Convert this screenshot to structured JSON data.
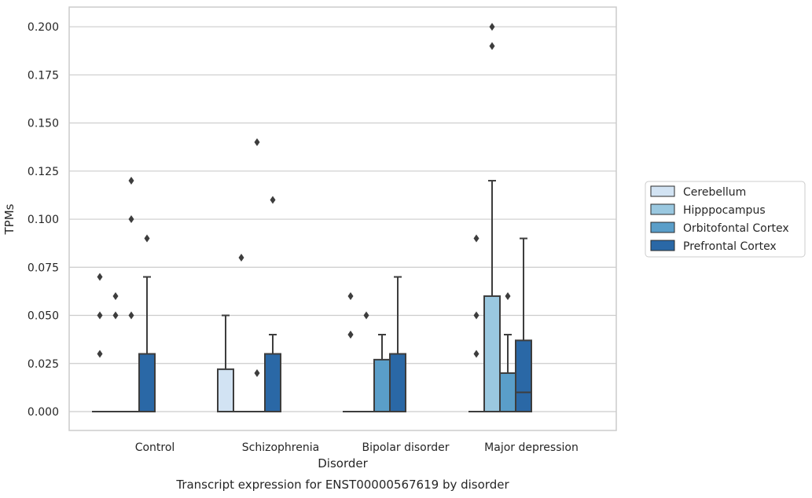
{
  "caption": "Transcript expression for ENST00000567619 by disorder",
  "colors": {
    "line": "#3d3d3d",
    "grid": "#cccccc",
    "spine": "#cccccc"
  },
  "chart_data": {
    "type": "box",
    "xlabel": "Disorder",
    "ylabel": "TPMs",
    "ylim": [
      -0.01,
      0.21
    ],
    "yticks": [
      "0.000",
      "0.025",
      "0.050",
      "0.075",
      "0.100",
      "0.125",
      "0.150",
      "0.175",
      "0.200"
    ],
    "grid": "horizontal",
    "legend_position": "right",
    "categories": [
      "Control",
      "Schizophrenia",
      "Bipolar disorder",
      "Major depression"
    ],
    "series": [
      {
        "name": "Cerebellum",
        "color": "#d2e3f3",
        "boxes": [
          {
            "q1": 0,
            "median": 0,
            "q3": 0,
            "whislo": 0,
            "whishi": 0,
            "fliers": [
              0.03,
              0.05,
              0.07
            ]
          },
          {
            "q1": 0,
            "median": 0,
            "q3": 0.022,
            "whislo": 0,
            "whishi": 0.05,
            "fliers": []
          },
          {
            "q1": 0,
            "median": 0,
            "q3": 0,
            "whislo": 0,
            "whishi": 0,
            "fliers": [
              0.04,
              0.04,
              0.06
            ]
          },
          {
            "q1": 0,
            "median": 0,
            "q3": 0,
            "whislo": 0,
            "whishi": 0,
            "fliers": [
              0.03,
              0.05,
              0.09
            ]
          }
        ]
      },
      {
        "name": "Hipppocampus",
        "color": "#9ac8e0",
        "boxes": [
          {
            "q1": 0,
            "median": 0,
            "q3": 0,
            "whislo": 0,
            "whishi": 0,
            "fliers": [
              0.05,
              0.06
            ]
          },
          {
            "q1": 0,
            "median": 0,
            "q3": 0,
            "whislo": 0,
            "whishi": 0,
            "fliers": [
              0.08
            ]
          },
          {
            "q1": 0,
            "median": 0,
            "q3": 0,
            "whislo": 0,
            "whishi": 0,
            "fliers": [
              0.05
            ]
          },
          {
            "q1": 0,
            "median": 0,
            "q3": 0.06,
            "whislo": 0,
            "whishi": 0.12,
            "fliers": [
              0.19,
              0.2
            ]
          }
        ]
      },
      {
        "name": "Orbitofontal Cortex",
        "color": "#5a9ec9",
        "boxes": [
          {
            "q1": 0,
            "median": 0,
            "q3": 0,
            "whislo": 0,
            "whishi": 0,
            "fliers": [
              0.05,
              0.1,
              0.12
            ]
          },
          {
            "q1": 0,
            "median": 0,
            "q3": 0,
            "whislo": 0,
            "whishi": 0,
            "fliers": [
              0.02,
              0.14
            ]
          },
          {
            "q1": 0,
            "median": 0,
            "q3": 0.027,
            "whislo": 0,
            "whishi": 0.04,
            "fliers": []
          },
          {
            "q1": 0,
            "median": 0,
            "q3": 0.02,
            "whislo": 0,
            "whishi": 0.04,
            "fliers": [
              0.06
            ]
          }
        ]
      },
      {
        "name": "Prefrontal Cortex",
        "color": "#2a68a6",
        "boxes": [
          {
            "q1": 0,
            "median": 0,
            "q3": 0.03,
            "whislo": 0,
            "whishi": 0.07,
            "fliers": [
              0.09
            ]
          },
          {
            "q1": 0,
            "median": 0,
            "q3": 0.03,
            "whislo": 0,
            "whishi": 0.04,
            "fliers": [
              0.11
            ]
          },
          {
            "q1": 0,
            "median": 0,
            "q3": 0.03,
            "whislo": 0,
            "whishi": 0.07,
            "fliers": []
          },
          {
            "q1": 0,
            "median": 0.01,
            "q3": 0.037,
            "whislo": 0,
            "whishi": 0.09,
            "fliers": []
          }
        ]
      }
    ]
  }
}
